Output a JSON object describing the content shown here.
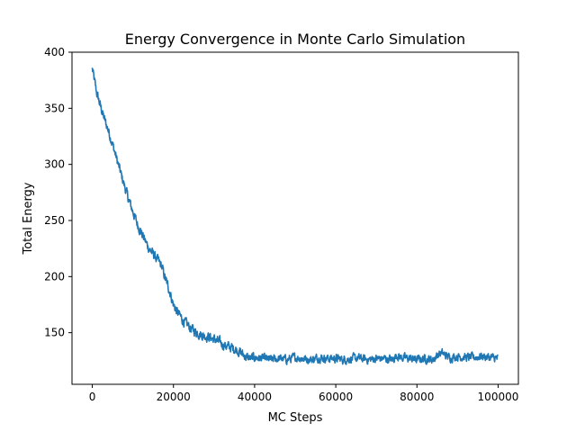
{
  "chart_data": {
    "type": "line",
    "title": "Energy Convergence in Monte Carlo Simulation",
    "xlabel": "MC Steps",
    "ylabel": "Total Energy",
    "xlim": [
      -5000,
      105000
    ],
    "ylim": [
      104,
      400
    ],
    "xticks": [
      0,
      20000,
      40000,
      60000,
      80000,
      100000
    ],
    "yticks": [
      150,
      200,
      250,
      300,
      350,
      400
    ],
    "grid": false,
    "colors": {
      "series": "#1f77b4"
    },
    "series": [
      {
        "x": [
          0,
          1000,
          2000,
          3000,
          4000,
          5000,
          6000,
          7000,
          8000,
          9000,
          10000,
          11000,
          12000,
          13000,
          14000,
          15000,
          16000,
          17000,
          18000,
          19000,
          20000,
          21000,
          22000,
          23000,
          24000,
          25000,
          26000,
          27000,
          28000,
          29000,
          30000,
          31000,
          32000,
          33000,
          34000,
          35000,
          36000,
          37000,
          38000,
          39000,
          40000,
          42000,
          44000,
          46000,
          48000,
          50000,
          52000,
          54000,
          56000,
          58000,
          60000,
          62000,
          64000,
          66000,
          68000,
          70000,
          72000,
          74000,
          75000,
          76000,
          78000,
          80000,
          82000,
          84000,
          85000,
          86000,
          87000,
          88000,
          90000,
          92000,
          94000,
          96000,
          98000,
          100000
        ],
        "y": [
          385,
          365,
          352,
          340,
          330,
          318,
          305,
          292,
          280,
          268,
          258,
          248,
          240,
          232,
          225,
          220,
          215,
          210,
          198,
          188,
          175,
          168,
          163,
          158,
          155,
          152,
          150,
          148,
          147,
          146,
          144,
          142,
          140,
          138,
          137,
          136,
          134,
          131,
          128,
          127,
          128,
          127,
          126,
          127,
          126,
          128,
          127,
          126,
          128,
          127,
          127,
          126,
          127,
          127,
          126,
          127,
          127,
          126,
          130,
          128,
          127,
          126,
          127,
          126,
          130,
          132,
          130,
          128,
          129,
          128,
          128,
          129,
          128,
          127
        ]
      }
    ]
  }
}
